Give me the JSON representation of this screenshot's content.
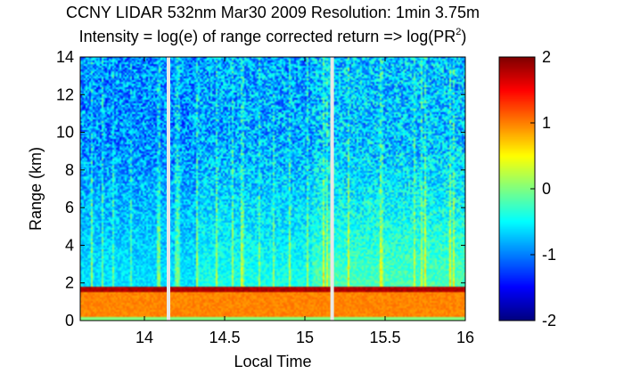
{
  "chart_data": {
    "type": "heatmap",
    "title": "CCNY LIDAR 532nm Mar30 2009 Resolution: 1min 3.75m",
    "subtitle": {
      "prefix": "Intensity = log(e) of range corrected return => log(PR",
      "superscript": "2",
      "suffix": ")"
    },
    "xlabel": "Local Time",
    "ylabel": "Range (km)",
    "xlim": [
      13.6,
      16.0
    ],
    "ylim": [
      0,
      14
    ],
    "xticks": [
      {
        "value": 14,
        "label": "14"
      },
      {
        "value": 14.5,
        "label": "14.5"
      },
      {
        "value": 15,
        "label": "15"
      },
      {
        "value": 15.5,
        "label": "15.5"
      },
      {
        "value": 16,
        "label": "16"
      }
    ],
    "yticks": [
      {
        "value": 0,
        "label": "0"
      },
      {
        "value": 2,
        "label": "2"
      },
      {
        "value": 4,
        "label": "4"
      },
      {
        "value": 6,
        "label": "6"
      },
      {
        "value": 8,
        "label": "8"
      },
      {
        "value": 10,
        "label": "10"
      },
      {
        "value": 12,
        "label": "12"
      },
      {
        "value": 14,
        "label": "14"
      }
    ],
    "colorbar": {
      "range": [
        -2,
        2
      ],
      "ticks": [
        {
          "value": 2,
          "label": "2"
        },
        {
          "value": 1,
          "label": "1"
        },
        {
          "value": 0,
          "label": "0"
        },
        {
          "value": -1,
          "label": "-1"
        },
        {
          "value": -2,
          "label": "-2"
        }
      ],
      "colormap": "jet"
    },
    "boundary_layer_top_km": 1.65,
    "data_gaps_local_time": [
      14.15,
      15.17
    ],
    "colors": {
      "low": "#00008f",
      "mid": "#7fff7f",
      "high": "#800000",
      "gap": "#e8e8e8"
    }
  }
}
